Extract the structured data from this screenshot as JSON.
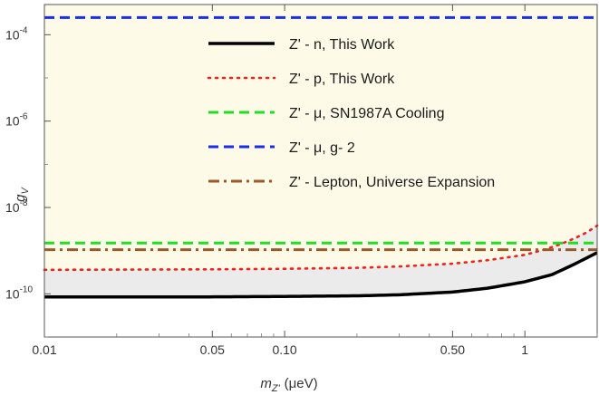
{
  "chart_data": {
    "type": "line",
    "xscale": "log",
    "yscale": "log",
    "xlim": [
      0.01,
      2.0
    ],
    "ylim": [
      1e-11,
      0.0005
    ],
    "xlabel_main": "m",
    "xlabel_sub": "Z'",
    "xlabel_unit": "(μeV)",
    "ylabel_main": "g",
    "ylabel_sub": "V",
    "x_ticks": [
      {
        "value": 0.01,
        "label": "0.01"
      },
      {
        "value": 0.05,
        "label": "0.05"
      },
      {
        "value": 0.1,
        "label": "0.10"
      },
      {
        "value": 0.5,
        "label": "0.50"
      },
      {
        "value": 1,
        "label": "1"
      }
    ],
    "y_ticks": [
      {
        "value": 1e-10,
        "base": "10",
        "exp": "-10"
      },
      {
        "value": 1e-08,
        "base": "10",
        "exp": "-8"
      },
      {
        "value": 1e-06,
        "base": "10",
        "exp": "-6"
      },
      {
        "value": 0.0001,
        "base": "10",
        "exp": "-4"
      }
    ],
    "shaded_regions": [
      {
        "name": "excluded",
        "color": "#fdfbe8",
        "lower_series": "Z' - p, This Work"
      },
      {
        "name": "between",
        "color": "#ebebeb",
        "lower_series": "Z' - n, This Work",
        "upper_series": "Z' - p, This Work"
      }
    ],
    "series": [
      {
        "name": "Z' - n, This Work",
        "color": "#000000",
        "style": "solid",
        "x": [
          0.01,
          0.05,
          0.1,
          0.2,
          0.3,
          0.5,
          0.7,
          1.0,
          1.3,
          1.6,
          2.0
        ],
        "y": [
          8.5e-11,
          8.5e-11,
          8.7e-11,
          9e-11,
          9.5e-11,
          1.1e-10,
          1.35e-10,
          1.9e-10,
          2.8e-10,
          4.8e-10,
          9e-10
        ]
      },
      {
        "name": "Z' - p, This Work",
        "color": "#e8251f",
        "style": "dotted",
        "x": [
          0.01,
          0.05,
          0.1,
          0.2,
          0.3,
          0.5,
          0.7,
          1.0,
          1.2,
          1.4,
          1.6,
          1.8,
          2.0
        ],
        "y": [
          3.6e-10,
          3.7e-10,
          3.8e-10,
          4e-10,
          4.3e-10,
          5e-10,
          6e-10,
          8e-10,
          1.05e-09,
          1.4e-09,
          1.9e-09,
          2.6e-09,
          3.8e-09
        ]
      },
      {
        "name": "Z' - μ, SN1987A Cooling",
        "color": "#1fe01f",
        "style": "dashed",
        "x": [
          0.01,
          2.0
        ],
        "y": [
          1.5e-09,
          1.5e-09
        ]
      },
      {
        "name": "Z' - μ, g- 2",
        "color": "#1a2ee8",
        "style": "dashed",
        "x": [
          0.01,
          2.0
        ],
        "y": [
          0.00025,
          0.00025
        ]
      },
      {
        "name": "Z' - Lepton, Universe Expansion",
        "color": "#9c5a2a",
        "style": "dashdot",
        "x": [
          0.01,
          2.0
        ],
        "y": [
          1.05e-09,
          1.05e-09
        ]
      }
    ],
    "legend_position": "top-center",
    "grid": false
  }
}
